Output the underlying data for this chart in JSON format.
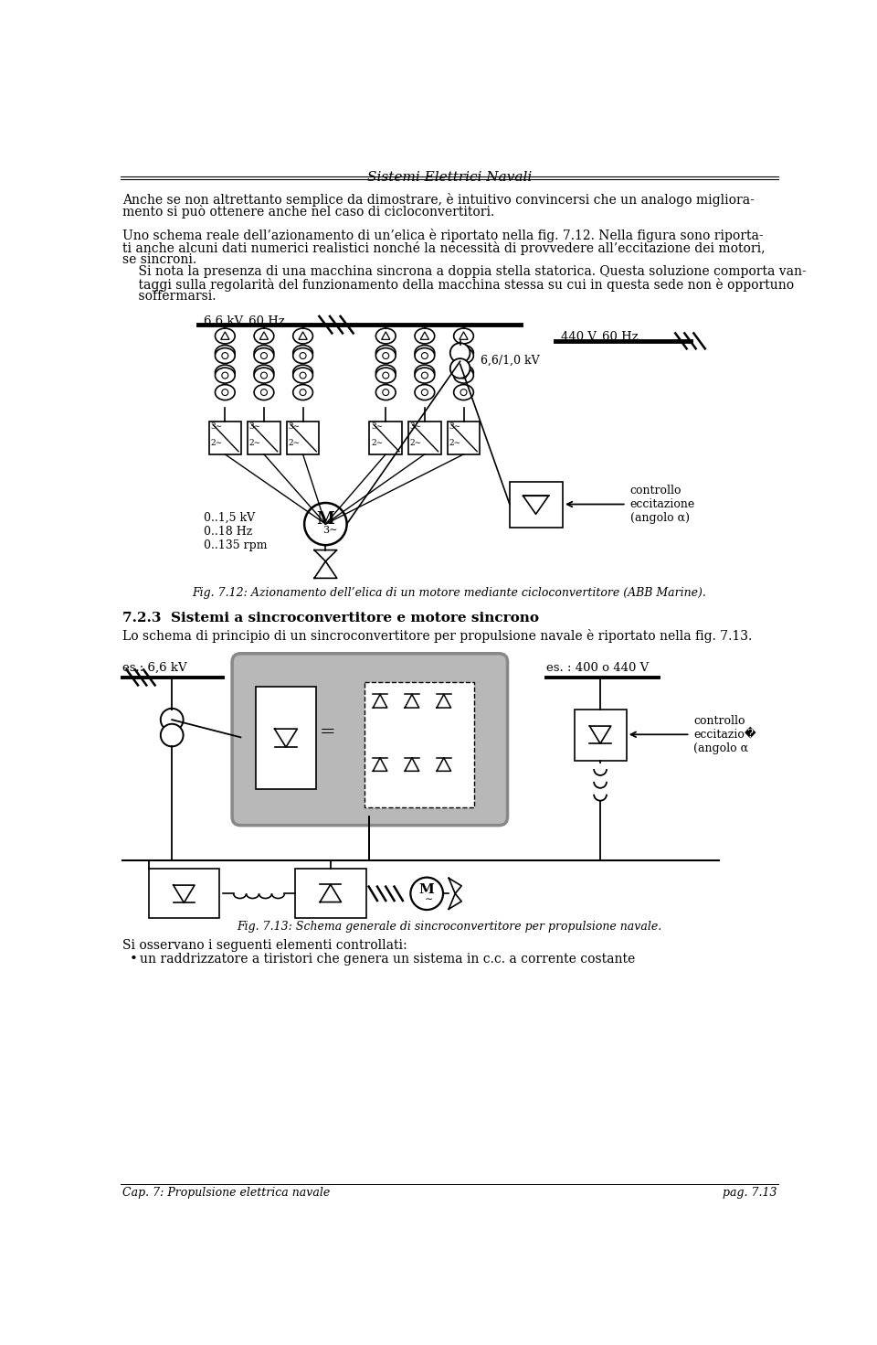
{
  "title": "Sistemi Elettrici Navali",
  "body1_l1": "Anche se non altrettanto semplice da dimostrare, è intuitivo convincersi che un analogo migliora-",
  "body1_l2": "mento si può ottenere anche nel caso di cicloconvertitori.",
  "body2_l1": "Uno schema reale dell’azionamento di un’elica è riportato nella fig. 7.12. Nella figura sono riporta-",
  "body2_l2": "ti anche alcuni dati numerici realistici nonché la necessità di provvedere all’eccitazione dei motori,",
  "body2_l3": "se sincroni.",
  "body3_l1": "    Si nota la presenza di una macchina sincrona a doppia stella statorica. Questa soluzione comporta van-",
  "body3_l2": "    taggi sulla regolarità del funzionamento della macchina stessa su cui in questa sede non è opportuno",
  "body3_l3": "    soffermarsi.",
  "fig712_caption": "Fig. 7.12: Azionamento dell’elica di un motore mediante cicloconvertitore (ABB Marine).",
  "section_title": "7.2.3  Sistemi a sincroconvertitore e motore sincrono",
  "section_text": "Lo schema di principio di un sincroconvertitore per propulsione navale è riportato nella fig. 7.13.",
  "fig713_caption": "Fig. 7.13: Schema generale di sincroconvertitore per propulsione navale.",
  "final_text": "Si osservano i seguenti elementi controllati:",
  "bullet": "un raddrizzatore a tiristori che genera un sistema in c.c. a corrente costante",
  "footer_left": "Cap. 7: Propulsione elettrica navale",
  "footer_right": "pag. 7.13",
  "bus1_label": "6,6 kV, 60 Hz",
  "bus2_label": "440 V, 60 Hz",
  "trans_label": "6,6/1,0 kV",
  "motor_params": "0..1,5 kV\n0..18 Hz\n0..135 rpm",
  "ctrl_label": "controllo\neccitazione\n(angolo α)",
  "es1_label": "es.: 6,6 kV",
  "es2_label": "es. : 400 o 440 V",
  "ctrl_label2": "controllo\neccitazio�\n(angolo α",
  "bg": "#ffffff",
  "lc": "#000000"
}
